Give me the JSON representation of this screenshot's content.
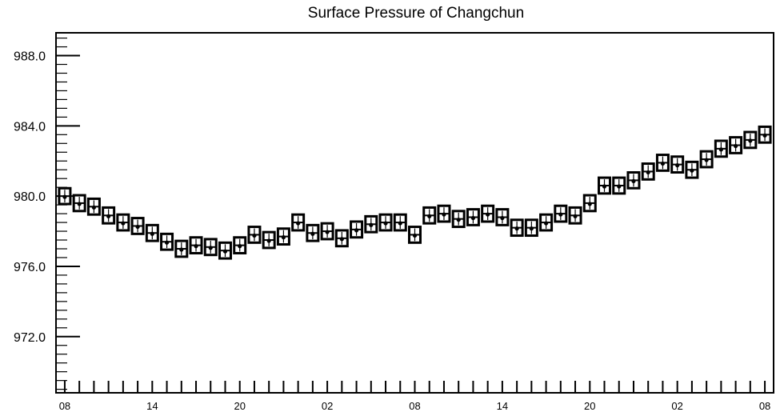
{
  "chart_data": {
    "type": "boxplot",
    "title": "Surface Pressure of Changchun",
    "xlabel": "",
    "ylabel": "",
    "ylim": [
      968.8,
      989.3
    ],
    "y_ticks": [
      "988.0",
      "984.0",
      "980.0",
      "976.0",
      "972.0"
    ],
    "y_tick_values": [
      988.0,
      984.0,
      980.0,
      976.0,
      972.0
    ],
    "x_tick_labels": [
      "08",
      "14",
      "20",
      "02",
      "08",
      "14",
      "20",
      "02",
      "08"
    ],
    "x_tick_hours": [
      0,
      6,
      12,
      18,
      24,
      30,
      36,
      42,
      48
    ],
    "x_range_hours": [
      -0.6,
      48.6
    ],
    "box_half_height": 0.45,
    "grid": false,
    "legend": "none",
    "series": [
      {
        "x_hours": [
          0,
          1,
          2,
          3,
          4,
          5,
          6,
          7,
          8,
          9,
          10,
          11,
          12,
          13,
          14,
          15,
          16,
          17,
          18,
          19,
          20,
          21,
          22,
          23,
          24,
          25,
          26,
          27,
          28,
          29,
          30,
          31,
          32,
          33,
          34,
          35,
          36,
          37,
          38,
          39,
          40,
          41,
          42,
          43,
          44,
          45,
          46,
          47,
          48
        ],
        "values": [
          980.0,
          979.6,
          979.4,
          978.9,
          978.5,
          978.3,
          977.9,
          977.4,
          977.0,
          977.2,
          977.1,
          976.9,
          977.2,
          977.8,
          977.5,
          977.7,
          978.5,
          977.9,
          978.0,
          977.6,
          978.1,
          978.4,
          978.5,
          978.5,
          977.8,
          978.9,
          979.0,
          978.7,
          978.8,
          979.0,
          978.8,
          978.2,
          978.2,
          978.5,
          979.0,
          978.9,
          979.6,
          980.6,
          980.6,
          980.9,
          981.4,
          981.9,
          981.8,
          981.5,
          982.1,
          982.7,
          982.9,
          983.2,
          983.5
        ]
      }
    ]
  }
}
